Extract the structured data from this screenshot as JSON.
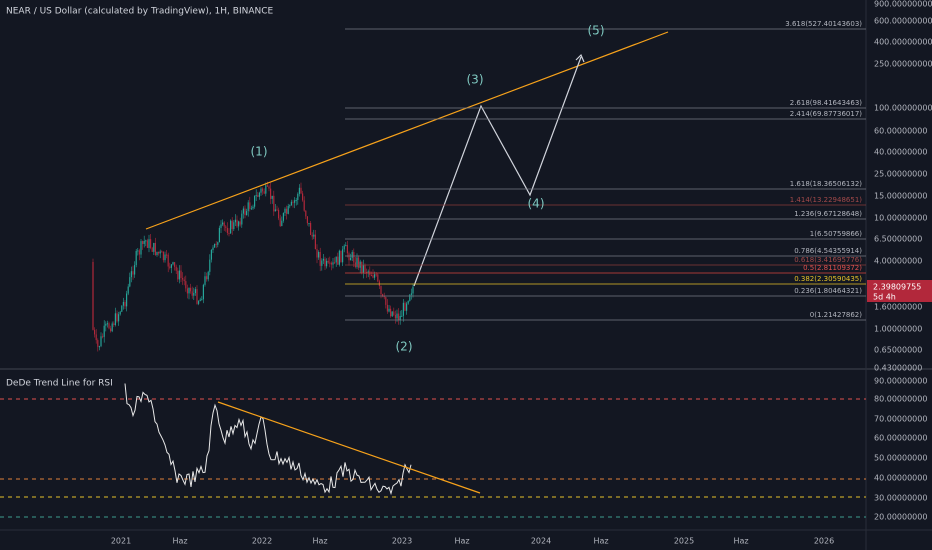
{
  "header": {
    "title": "NEAR / US Dollar (calculated by TradingView), 1H, BINANCE"
  },
  "price_axis": {
    "ticks": [
      "900.00000000",
      "600.00000000",
      "400.00000000",
      "250.00000000",
      "100.00000000",
      "60.00000000",
      "40.00000000",
      "25.00000000",
      "15.00000000",
      "10.00000000",
      "6.50000000",
      "4.00000000",
      "1.60000000",
      "1.00000000",
      "0.65000000",
      "0.43000000"
    ]
  },
  "price_label": {
    "value": "2.39809755",
    "countdown": "5d 4h"
  },
  "fib_levels": [
    "3.618(527.40143603)",
    "2.618(98.41643463)",
    "2.414(69.87736017)",
    "1.618(18.36506132)",
    "1.414(13.22948651)",
    "1.236(9.67128648)",
    "1(6.50759866)",
    "0.786(4.54355914)",
    "0.618(3.41695776)",
    "0.5(2.81109372)",
    "0.382(2.30590435)",
    "0.236(1.80464321)",
    "0(1.21427862)"
  ],
  "waves": [
    "(1)",
    "(2)",
    "(3)",
    "(4)",
    "(5)"
  ],
  "rsi": {
    "title": "DeDe Trend Line for RSI",
    "ticks": [
      "90.00000000",
      "80.00000000",
      "70.00000000",
      "60.00000000",
      "50.00000000",
      "40.00000000",
      "30.00000000",
      "20.00000000"
    ]
  },
  "x_axis": [
    "2021",
    "Haz",
    "2022",
    "Haz",
    "2023",
    "Haz",
    "2024",
    "Haz",
    "2025",
    "Haz",
    "2026"
  ]
}
